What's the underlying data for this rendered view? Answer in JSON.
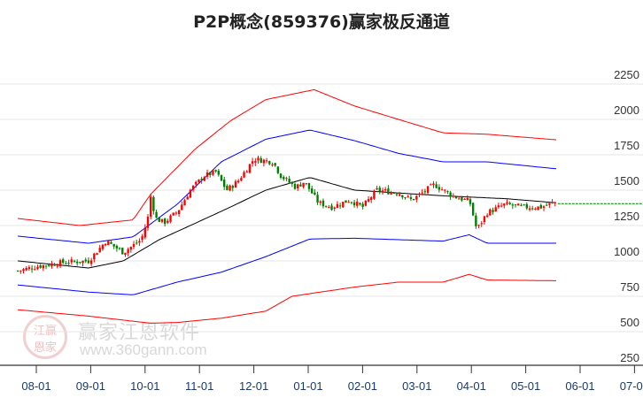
{
  "chart_data": {
    "type": "candlestick",
    "title": "P2P概念(859376)赢家极反通道",
    "watermark": {
      "name": "赢家江恩软件",
      "url": "www.360gann.com",
      "logo_text": "江赢恩家"
    },
    "x_ticks": [
      "08-01",
      "09-01",
      "10-01",
      "11-01",
      "12-01",
      "01-01",
      "02-01",
      "03-01",
      "04-01",
      "05-01",
      "06-01",
      "07-01"
    ],
    "y_ticks": [
      2250,
      2000,
      1750,
      1500,
      1250,
      1000,
      750,
      500,
      250
    ],
    "ylim": [
      250,
      2250
    ],
    "x_unit": "months since 08-01",
    "price": {
      "x": [
        -0.34,
        0,
        0.5,
        0.96,
        1.28,
        1.6,
        1.93,
        2.05,
        2.1,
        2.2,
        2.35,
        2.6,
        2.83,
        3.08,
        3.3,
        3.5,
        3.7,
        4.0,
        4.35,
        4.5,
        4.77,
        4.93,
        5.19,
        5.43,
        5.76,
        6.0,
        6.26,
        6.67,
        6.9,
        7.32,
        7.65,
        7.97,
        8.1,
        8.29,
        8.62,
        8.95,
        9.28,
        9.59
      ],
      "close": [
        930,
        960,
        990,
        1000,
        1140,
        1060,
        1150,
        1300,
        1460,
        1300,
        1270,
        1350,
        1500,
        1600,
        1630,
        1500,
        1560,
        1720,
        1700,
        1600,
        1520,
        1560,
        1410,
        1380,
        1430,
        1380,
        1500,
        1480,
        1430,
        1540,
        1460,
        1420,
        1220,
        1340,
        1400,
        1380,
        1380,
        1420
      ]
    },
    "series": [
      {
        "name": "MA",
        "color": "#000000",
        "x": [
          -0.34,
          0.96,
          1.6,
          2.26,
          3.4,
          4.22,
          5.03,
          5.85,
          7.48,
          8.62,
          9.59
        ],
        "values": [
          1000,
          950,
          1000,
          1150,
          1350,
          1500,
          1590,
          1500,
          1460,
          1440,
          1410
        ]
      },
      {
        "name": "upper-inner",
        "color": "#0000ff",
        "x": [
          -0.34,
          0.96,
          1.78,
          2.59,
          3.4,
          4.22,
          5.03,
          5.85,
          6.66,
          7.48,
          8.29,
          9.59
        ],
        "values": [
          1175,
          1125,
          1170,
          1400,
          1700,
          1860,
          1925,
          1850,
          1760,
          1700,
          1700,
          1650
        ]
      },
      {
        "name": "lower-inner",
        "color": "#0000ff",
        "x": [
          -0.34,
          0.96,
          1.78,
          2.59,
          3.4,
          4.22,
          5.03,
          5.85,
          6.66,
          7.48,
          7.96,
          8.29,
          9.59
        ],
        "values": [
          830,
          780,
          760,
          850,
          920,
          1030,
          1155,
          1160,
          1150,
          1140,
          1185,
          1125,
          1125
        ]
      },
      {
        "name": "upper-outer",
        "color": "#ff0000",
        "x": [
          -0.34,
          0.8,
          1.78,
          2.1,
          2.92,
          3.57,
          4.22,
          5.11,
          5.85,
          6.66,
          7.48,
          8.29,
          9.59
        ],
        "values": [
          1300,
          1250,
          1290,
          1470,
          1790,
          1990,
          2140,
          2210,
          2095,
          2000,
          1905,
          1895,
          1855
        ]
      },
      {
        "name": "lower-outer",
        "color": "#ff0000",
        "x": [
          -0.34,
          0.96,
          2.1,
          2.6,
          3.4,
          4.22,
          4.7,
          5.85,
          6.66,
          7.48,
          7.96,
          8.29,
          9.59
        ],
        "values": [
          655,
          610,
          560,
          565,
          595,
          645,
          750,
          815,
          850,
          850,
          905,
          865,
          860
        ]
      },
      {
        "name": "projection",
        "color": "#008000",
        "x": [
          9.59,
          11.2
        ],
        "values": [
          1405,
          1405
        ]
      }
    ]
  }
}
